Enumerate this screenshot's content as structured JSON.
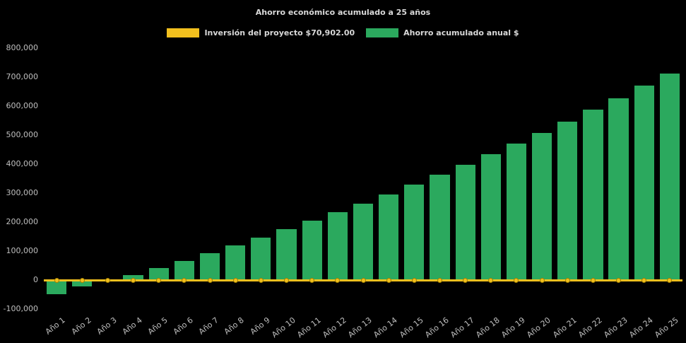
{
  "chart_data": {
    "type": "bar",
    "title": "Ahorro económico acumulado a 25 años",
    "xlabel": "",
    "ylabel": "",
    "categories": [
      "Año 1",
      "Año 2",
      "Año 3",
      "Año 4",
      "Año 5",
      "Año 6",
      "Año 7",
      "Año 8",
      "Año 9",
      "Año 10",
      "Año 11",
      "Año 12",
      "Año 13",
      "Año 14",
      "Año 15",
      "Año 16",
      "Año 17",
      "Año 18",
      "Año 19",
      "Año 20",
      "Año 21",
      "Año 22",
      "Año 23",
      "Año 24",
      "Año 25"
    ],
    "series": [
      {
        "name": "Inversión del proyecto $70,902.00",
        "type": "line",
        "color": "#F2C01E",
        "values": [
          0,
          0,
          0,
          0,
          0,
          0,
          0,
          0,
          0,
          0,
          0,
          0,
          0,
          0,
          0,
          0,
          0,
          0,
          0,
          0,
          0,
          0,
          0,
          0,
          0
        ]
      },
      {
        "name": "Ahorro acumulado anual $",
        "type": "bar",
        "color": "#2BA95E",
        "values": [
          -48000,
          -22000,
          3000,
          18000,
          41000,
          66000,
          93000,
          120000,
          147000,
          176000,
          204000,
          233000,
          264000,
          296000,
          329000,
          363000,
          397000,
          433000,
          470000,
          508000,
          547000,
          587000,
          628000,
          670000,
          713000
        ]
      }
    ],
    "ylim": [
      -100000,
      800000
    ],
    "ytick_step": 100000,
    "grid": false,
    "legend_position": "top",
    "background": "#000000",
    "text_color": "#d9d9d9",
    "tick_color": "#bfbfbf"
  }
}
